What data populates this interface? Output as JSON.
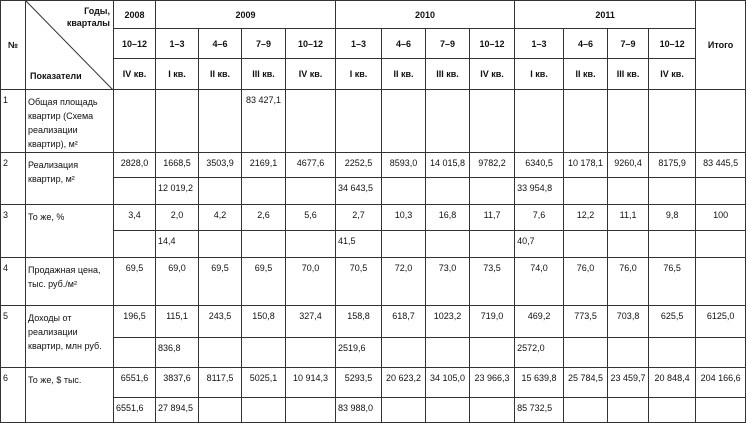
{
  "table": {
    "header": {
      "number": "№",
      "years_quarters": "Годы, кварталы",
      "indicators": "Показатели",
      "total": "Итого",
      "years": [
        {
          "year": "2008",
          "quarters": [
            {
              "months": "10–12",
              "quarter": "IV кв."
            }
          ]
        },
        {
          "year": "2009",
          "quarters": [
            {
              "months": "1–3",
              "quarter": "I кв."
            },
            {
              "months": "4–6",
              "quarter": "II кв."
            },
            {
              "months": "7–9",
              "quarter": "III кв."
            },
            {
              "months": "10–12",
              "quarter": "IV кв."
            }
          ]
        },
        {
          "year": "2010",
          "quarters": [
            {
              "months": "1–3",
              "quarter": "I кв."
            },
            {
              "months": "4–6",
              "quarter": "II кв."
            },
            {
              "months": "7–9",
              "quarter": "III кв."
            },
            {
              "months": "10–12",
              "quarter": "IV кв."
            }
          ]
        },
        {
          "year": "2011",
          "quarters": [
            {
              "months": "1–3",
              "quarter": "I кв."
            },
            {
              "months": "4–6",
              "quarter": "II кв."
            },
            {
              "months": "7–9",
              "quarter": "III кв."
            },
            {
              "months": "10–12",
              "quarter": "IV кв."
            }
          ]
        }
      ]
    },
    "rows": [
      {
        "number": "1",
        "label": "Общая площадь квартир (Схема реализации квартир), м²",
        "values": [
          null,
          null,
          null,
          "83 427,1",
          null,
          null,
          null,
          null,
          null,
          null,
          null,
          null,
          null,
          null
        ]
      },
      {
        "number": "2",
        "label": "Реализация квартир, м²",
        "values": [
          "2828,0",
          "1668,5",
          "3503,9",
          "2169,1",
          "4677,6",
          "2252,5",
          "8593,0",
          "14 015,8",
          "9782,2",
          "6340,5",
          "10 178,1",
          "9260,4",
          "8175,9",
          "83 445,5"
        ],
        "subtotals": [
          null,
          "12 019,2",
          null,
          null,
          null,
          "34 643,5",
          null,
          null,
          null,
          "33 954,8",
          null,
          null,
          null,
          null
        ]
      },
      {
        "number": "3",
        "label": "То же, %",
        "values": [
          "3,4",
          "2,0",
          "4,2",
          "2,6",
          "5,6",
          "2,7",
          "10,3",
          "16,8",
          "11,7",
          "7,6",
          "12,2",
          "11,1",
          "9,8",
          "100"
        ],
        "subtotals": [
          null,
          "14,4",
          null,
          null,
          null,
          "41,5",
          null,
          null,
          null,
          "40,7",
          null,
          null,
          null,
          null
        ]
      },
      {
        "number": "4",
        "label": "Продажная цена, тыс. руб./м²",
        "values": [
          "69,5",
          "69,0",
          "69,5",
          "69,5",
          "70,0",
          "70,5",
          "72,0",
          "73,0",
          "73,5",
          "74,0",
          "76,0",
          "76,0",
          "76,5",
          null
        ]
      },
      {
        "number": "5",
        "label": "Доходы от реализации квартир, млн руб.",
        "values": [
          "196,5",
          "115,1",
          "243,5",
          "150,8",
          "327,4",
          "158,8",
          "618,7",
          "1023,2",
          "719,0",
          "469,2",
          "773,5",
          "703,8",
          "625,5",
          "6125,0"
        ],
        "subtotals": [
          null,
          "836,8",
          null,
          null,
          null,
          "2519,6",
          null,
          null,
          null,
          "2572,0",
          null,
          null,
          null,
          null
        ]
      },
      {
        "number": "6",
        "label": "То же, $ тыс.",
        "values": [
          "6551,6",
          "3837,6",
          "8117,5",
          "5025,1",
          "10 914,3",
          "5293,5",
          "20 623,2",
          "34 105,0",
          "23 966,3",
          "15 639,8",
          "25 784,5",
          "23 459,7",
          "20 848,4",
          "204 166,6"
        ],
        "subtotals": [
          "6551,6",
          "27 894,5",
          null,
          null,
          null,
          "83 988,0",
          null,
          null,
          null,
          "85 732,5",
          null,
          null,
          null,
          null
        ]
      }
    ]
  }
}
